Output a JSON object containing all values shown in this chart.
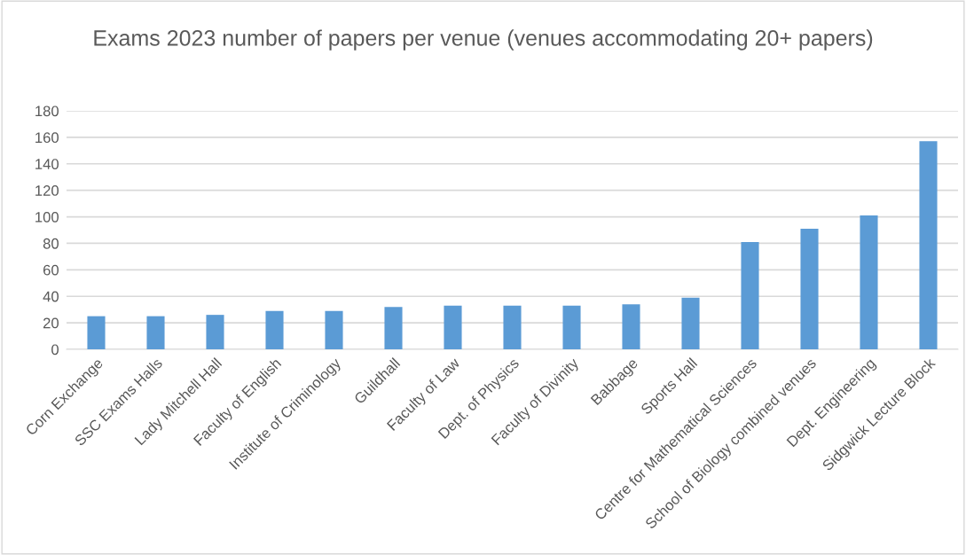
{
  "chart_data": {
    "type": "bar",
    "title": "Exams 2023 number of papers per venue (venues accommodating 20+ papers)",
    "categories": [
      "Corn Exchange",
      "SSC Exams Halls",
      "Lady Mitchell Hall",
      "Faculty of English",
      "Institute of Criminology",
      "Guildhall",
      "Faculty of Law",
      "Dept. of Physics",
      "Faculty of Divinity",
      "Babbage",
      "Sports Hall",
      "Centre for Mathematical Sciences",
      "School of Biology combined venues",
      "Dept. Engineering",
      "Sidgwick Lecture Block"
    ],
    "values": [
      25,
      25,
      26,
      29,
      29,
      32,
      33,
      33,
      33,
      34,
      39,
      81,
      91,
      101,
      157
    ],
    "color": "#5b9bd5",
    "ylim": [
      0,
      180
    ],
    "yticks": [
      0,
      20,
      40,
      60,
      80,
      100,
      120,
      140,
      160,
      180
    ],
    "grid": "y",
    "legend": false
  }
}
